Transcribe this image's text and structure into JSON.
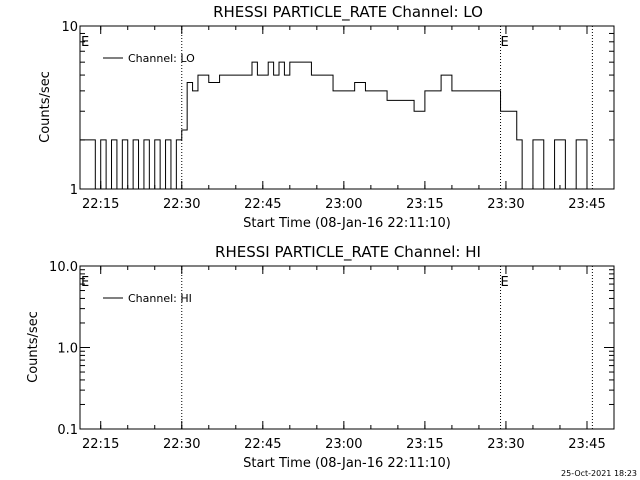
{
  "chart_data": [
    {
      "type": "line",
      "title": "RHESSI PARTICLE_RATE Channel: LO",
      "xlabel": "Start Time (08-Jan-16 22:11:10)",
      "ylabel": "Counts/sec",
      "y_scale": "log",
      "ylim": [
        1,
        10
      ],
      "y_ticks": [
        "10",
        "1"
      ],
      "xlim_minutes": [
        22.17,
        23.84
      ],
      "x_ticks": [
        "22:15",
        "22:30",
        "22:45",
        "23:00",
        "23:15",
        "23:30",
        "23:45"
      ],
      "legend": "top-left",
      "grid": false,
      "series": [
        {
          "name": "Channel: LO",
          "x": [
            "22:11:10",
            "22:14",
            "22:15",
            "22:16",
            "22:17",
            "22:18",
            "22:19",
            "22:20",
            "22:21",
            "22:22",
            "22:23",
            "22:24",
            "22:25",
            "22:26",
            "22:27",
            "22:28",
            "22:29",
            "22:30",
            "22:31",
            "22:32",
            "22:33",
            "22:35",
            "22:37",
            "22:39",
            "22:41",
            "22:43",
            "22:44",
            "22:45",
            "22:46",
            "22:47",
            "22:48",
            "22:49",
            "22:50",
            "22:52",
            "22:54",
            "22:56",
            "22:58",
            "23:00",
            "23:02",
            "23:04",
            "23:06",
            "23:08",
            "23:10",
            "23:12",
            "23:13",
            "23:14",
            "23:15",
            "23:16",
            "23:18",
            "23:20",
            "23:22",
            "23:24",
            "23:26",
            "23:28",
            "23:29",
            "23:30",
            "23:31",
            "23:32",
            "23:33",
            "23:35",
            "23:37",
            "23:39",
            "23:41",
            "23:43",
            "23:45",
            "23:46"
          ],
          "values": [
            2,
            1,
            2,
            1,
            2,
            1,
            2,
            1,
            2,
            1,
            2,
            1,
            2,
            1,
            2,
            1,
            2,
            2.3,
            4.5,
            4,
            5,
            4.5,
            5,
            5,
            5,
            6,
            5,
            5,
            6,
            5,
            6,
            5,
            6,
            6,
            5,
            5,
            4,
            4,
            4.5,
            4,
            4,
            3.5,
            3.5,
            3.5,
            3,
            3,
            4,
            4,
            5,
            4,
            4,
            4,
            4,
            4,
            3,
            3,
            3,
            2,
            1,
            2,
            1,
            2,
            1,
            2,
            1,
            1
          ]
        }
      ],
      "markers": [
        {
          "label": "E",
          "x": "22:11:10"
        },
        {
          "label": "E",
          "x": "23:29"
        }
      ],
      "vlines": [
        "22:30",
        "23:29",
        "23:46"
      ]
    },
    {
      "type": "line",
      "title": "RHESSI PARTICLE_RATE Channel: HI",
      "xlabel": "Start Time (08-Jan-16 22:11:10)",
      "ylabel": "Counts/sec",
      "y_scale": "log",
      "ylim": [
        0.1,
        10
      ],
      "y_ticks": [
        "10.0",
        "1.0",
        "0.1"
      ],
      "x_ticks": [
        "22:15",
        "22:30",
        "22:45",
        "23:00",
        "23:15",
        "23:30",
        "23:45"
      ],
      "legend": "top-left",
      "grid": false,
      "series": [
        {
          "name": "Channel: HI",
          "x": [],
          "values": []
        }
      ],
      "markers": [
        {
          "label": "E",
          "x": "22:11:10"
        },
        {
          "label": "E",
          "x": "23:29"
        }
      ],
      "vlines": [
        "22:30",
        "23:29",
        "23:46"
      ]
    }
  ],
  "footer": {
    "timestamp": "25-Oct-2021 18:23"
  }
}
